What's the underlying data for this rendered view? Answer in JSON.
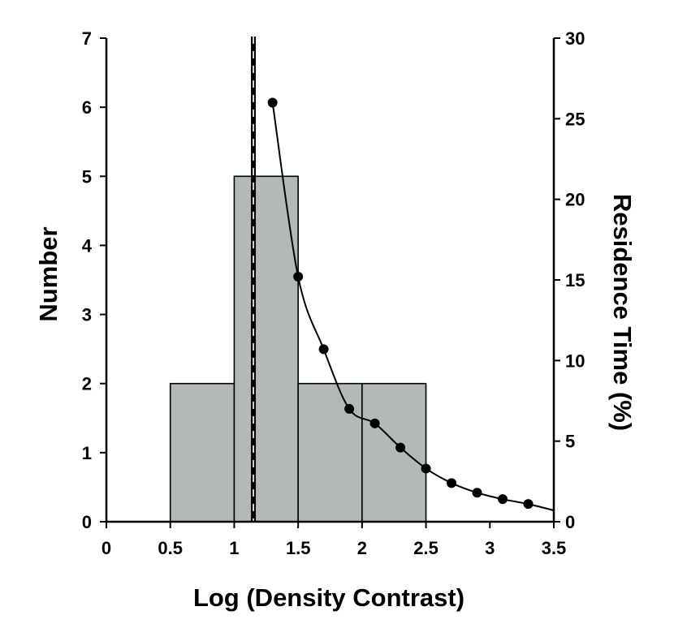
{
  "chart_data": {
    "type": "bar",
    "title": "",
    "xlabel": "Log (Density Contrast)",
    "ylabel": "Number",
    "y2label": "Residence Time (%)",
    "xlim": [
      0,
      3.5
    ],
    "ylim": [
      0,
      7
    ],
    "y2lim": [
      0,
      30
    ],
    "x_ticks": [
      "0",
      "0.5",
      "1",
      "1.5",
      "2",
      "2.5",
      "3",
      "3.5"
    ],
    "y_ticks": [
      "0",
      "1",
      "2",
      "3",
      "4",
      "5",
      "6",
      "7"
    ],
    "y2_ticks": [
      "0",
      "5",
      "10",
      "15",
      "20",
      "25",
      "30"
    ],
    "bar_color": "#b4b8b7",
    "bins": [
      {
        "x0": 0.5,
        "x1": 1.0,
        "count": 2
      },
      {
        "x0": 1.0,
        "x1": 1.5,
        "count": 5
      },
      {
        "x0": 1.5,
        "x1": 2.0,
        "count": 2
      },
      {
        "x0": 2.0,
        "x1": 2.5,
        "count": 2
      }
    ],
    "threshold_line_x": 1.15,
    "residence_curve": {
      "axis": "right",
      "marker": "circle",
      "x": [
        1.3,
        1.5,
        1.7,
        1.9,
        2.1,
        2.3,
        2.5,
        2.7,
        2.9,
        3.1,
        3.3
      ],
      "y": [
        26.0,
        15.2,
        10.7,
        7.0,
        6.1,
        4.6,
        3.3,
        2.4,
        1.8,
        1.4,
        1.1
      ],
      "end": [
        3.5,
        0.7
      ]
    },
    "grid": false,
    "legend": "none"
  }
}
